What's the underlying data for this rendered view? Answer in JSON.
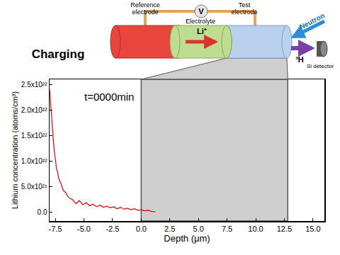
{
  "chart_data": {
    "type": "line",
    "x_label": "Depth (μm)",
    "y_label": "Lithium concentration (atoms/cm³)",
    "annotations": [
      "t=0000min"
    ],
    "x": [
      -8.0,
      -7.9,
      -7.8,
      -7.7,
      -7.6,
      -7.5,
      -7.4,
      -7.3,
      -7.2,
      -7.0,
      -6.8,
      -6.6,
      -6.4,
      -6.2,
      -6.0,
      -5.7,
      -5.4,
      -5.1,
      -4.8,
      -4.5,
      -4.2,
      -3.9,
      -3.6,
      -3.3,
      -3.0,
      -2.7,
      -2.4,
      -2.1,
      -1.8,
      -1.5,
      -1.2,
      -0.9,
      -0.6,
      -0.3,
      0.0,
      0.3,
      0.6,
      0.9,
      1.2
    ],
    "values": [
      2.4e+22,
      2.1e+22,
      1.7e+22,
      1.5e+22,
      1.2e+22,
      1.05e+22,
      8.5e+21,
      7.8e+21,
      6.5e+21,
      5.5e+21,
      4.2e+21,
      3.8e+21,
      3e+21,
      2.6e+21,
      2.4e+21,
      1.6e+21,
      2.2e+21,
      1.4e+21,
      1.8e+21,
      1.2e+21,
      1.5e+21,
      1e+21,
      1.3e+21,
      9e+20,
      1.1e+21,
      8e+20,
      1e+21,
      6e+20,
      9e+20,
      5e+20,
      7e+20,
      4e+20,
      6e+20,
      3e+20,
      4e+20,
      2e+20,
      3e+20,
      1e+20,
      0
    ],
    "color": "#e00000",
    "xlim": [
      -8,
      16
    ],
    "xticks": [
      -7.5,
      {
        "value": -5,
        "label": "-5.0"
      },
      -2.5,
      {
        "value": 0,
        "label": "0.0"
      },
      2.5,
      {
        "value": 5,
        "label": "5.0"
      },
      7.5,
      {
        "value": 10,
        "label": "10.0"
      },
      12.5,
      {
        "value": 15,
        "label": "15.0"
      }
    ],
    "ylim": [
      -1.8e+21,
      2.6e+22
    ],
    "yticks": [
      {
        "value": 0,
        "label": "0.0"
      },
      {
        "value": 5e+21,
        "label": "5.0x10²¹"
      },
      {
        "value": 1e+22,
        "label": "1.0x10²²"
      },
      {
        "value": 1.5e+22,
        "label": "1.5x10²²"
      },
      {
        "value": 2e+22,
        "label": "2.0x10²²"
      },
      {
        "value": 2.5e+22,
        "label": "2.5x10²²"
      }
    ],
    "grid": false,
    "shaded_region": [
      0.0,
      12.8
    ]
  },
  "diagram": {
    "title": "Charging",
    "reference_electrode": "Reference electrode",
    "electrolyte": "Electrolyte",
    "test_electrode": "Test electrode",
    "voltmeter": "V",
    "ion": "Li⁺",
    "neutron": "Neutron",
    "product": "³H",
    "detector": "Si detector"
  }
}
